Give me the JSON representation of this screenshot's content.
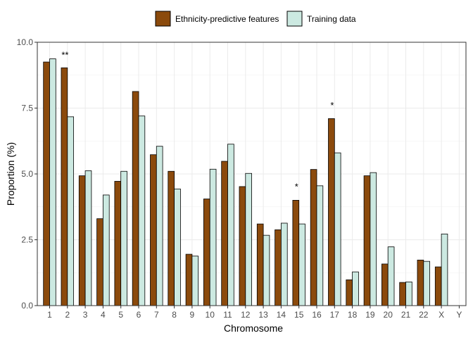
{
  "chart_data": {
    "type": "bar",
    "xlabel": "Chromosome",
    "ylabel": "Proportion (%)",
    "ylim": [
      0,
      10
    ],
    "yticks": [
      "0.0",
      "2.5",
      "5.0",
      "7.5",
      "10.0"
    ],
    "ytick_values": [
      0,
      2.5,
      5,
      7.5,
      10
    ],
    "grid": true,
    "legend_position": "top",
    "categories": [
      "1",
      "2",
      "3",
      "4",
      "5",
      "6",
      "7",
      "8",
      "9",
      "10",
      "11",
      "12",
      "13",
      "14",
      "15",
      "16",
      "17",
      "18",
      "19",
      "20",
      "21",
      "22",
      "X",
      "Y"
    ],
    "series": [
      {
        "name": "Ethnicity-predictive features",
        "color": "#8B4A0C",
        "values": [
          9.25,
          9.03,
          4.93,
          3.3,
          4.72,
          8.13,
          5.73,
          5.1,
          1.95,
          4.05,
          5.48,
          4.52,
          3.1,
          2.88,
          4.0,
          5.17,
          7.1,
          0.98,
          4.93,
          1.58,
          0.88,
          1.73,
          1.47,
          0
        ]
      },
      {
        "name": "Training data",
        "color": "#CCE9E1",
        "values": [
          9.37,
          7.17,
          5.12,
          4.2,
          5.1,
          7.2,
          6.05,
          4.43,
          1.88,
          5.18,
          6.13,
          5.02,
          2.67,
          3.13,
          3.1,
          4.55,
          5.8,
          1.28,
          5.05,
          2.23,
          0.9,
          1.68,
          2.72,
          0
        ]
      }
    ],
    "annotations": [
      {
        "category": "2",
        "text": "**",
        "y": 9.5
      },
      {
        "category": "15",
        "text": "*",
        "y": 4.5
      },
      {
        "category": "17",
        "text": "*",
        "y": 7.6
      }
    ]
  }
}
